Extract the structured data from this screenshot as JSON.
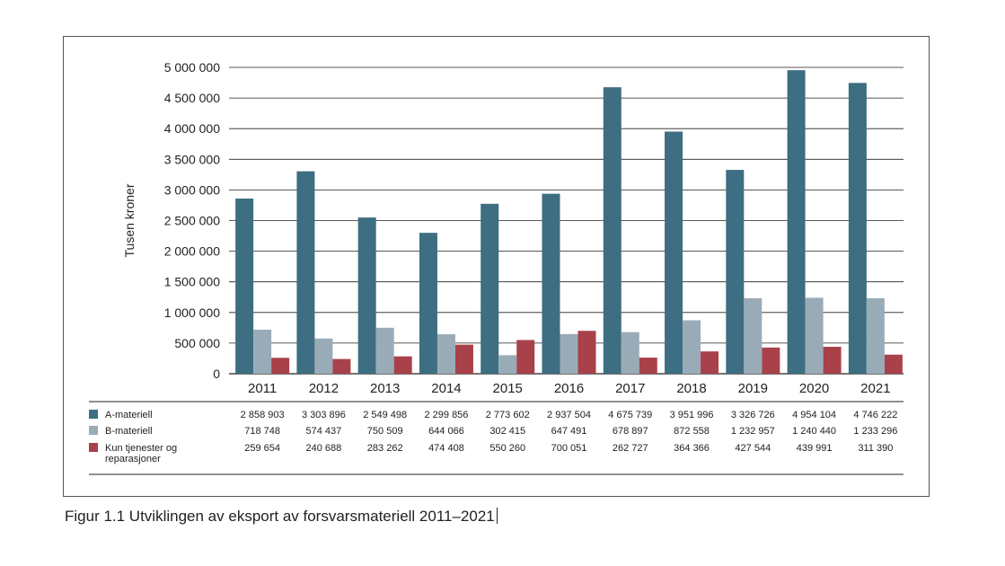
{
  "caption": "Figur 1.1  Utviklingen av eksport av forsvarsmateriell 2011–2021",
  "colors": {
    "a": "#3d6e82",
    "b": "#9aabb8",
    "c": "#a8414a",
    "grid": "#222222"
  },
  "chart_data": {
    "type": "bar",
    "title": "",
    "xlabel": "",
    "ylabel": "Tusen kroner",
    "ylim": [
      0,
      5000000
    ],
    "yticks": [
      0,
      500000,
      1000000,
      1500000,
      2000000,
      2500000,
      3000000,
      3500000,
      4000000,
      4500000,
      5000000
    ],
    "ytick_labels": [
      "0",
      "500 000",
      "1 000 000",
      "1 500 000",
      "2 000 000",
      "2 500 000",
      "3 000 000",
      "3 500 000",
      "4 000 000",
      "4 500 000",
      "5 000 000"
    ],
    "grid": true,
    "legend": "table-below",
    "categories": [
      "2011",
      "2012",
      "2013",
      "2014",
      "2015",
      "2016",
      "2017",
      "2018",
      "2019",
      "2020",
      "2021"
    ],
    "series": [
      {
        "name": "A-materiell",
        "values": [
          2858903,
          3303896,
          2549498,
          2299856,
          2773602,
          2937504,
          4675739,
          3951996,
          3326726,
          4954104,
          4746222
        ],
        "labels": [
          "2 858 903",
          "3 303 896",
          "2 549 498",
          "2 299 856",
          "2 773 602",
          "2 937 504",
          "4 675 739",
          "3 951 996",
          "3 326 726",
          "4 954 104",
          "4 746 222"
        ]
      },
      {
        "name": "B-materiell",
        "values": [
          718748,
          574437,
          750509,
          644066,
          302415,
          647491,
          678897,
          872558,
          1232957,
          1240440,
          1233296
        ],
        "labels": [
          "718 748",
          "574 437",
          "750 509",
          "644 066",
          "302 415",
          "647 491",
          "678 897",
          "872 558",
          "1 232 957",
          "1 240 440",
          "1 233 296"
        ]
      },
      {
        "name": "Kun tjenester og reparasjoner",
        "name_lines": [
          "Kun tjenester og",
          "reparasjoner"
        ],
        "values": [
          259654,
          240688,
          283262,
          474408,
          550260,
          700051,
          262727,
          364366,
          427544,
          439991,
          311390
        ],
        "labels": [
          "259 654",
          "240 688",
          "283 262",
          "474 408",
          "550 260",
          "700 051",
          "262 727",
          "364 366",
          "427 544",
          "439 991",
          "311 390"
        ]
      }
    ]
  }
}
